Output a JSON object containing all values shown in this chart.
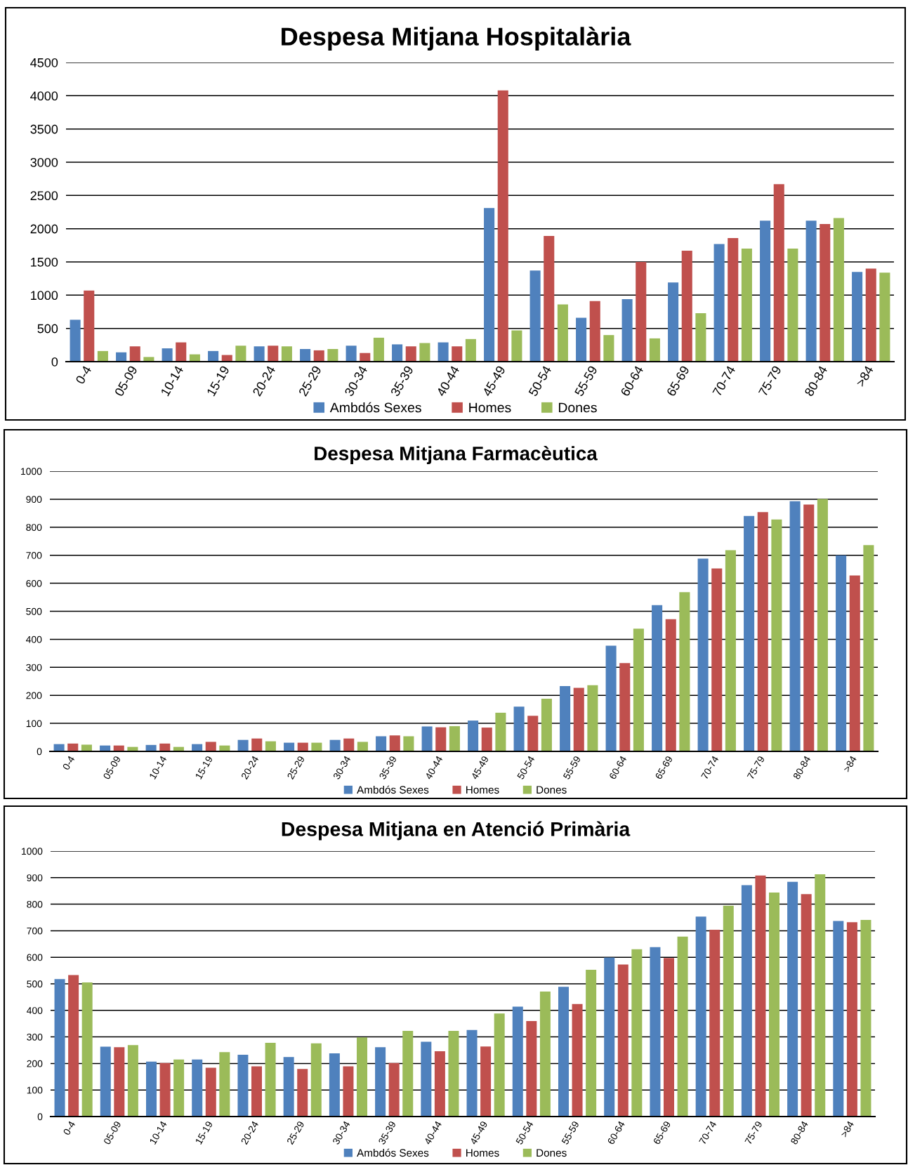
{
  "chart_data": [
    {
      "type": "bar",
      "title": "Despesa Mitjana Hospitalària",
      "categories": [
        "0-4",
        "05-09",
        "10-14",
        "15-19",
        "20-24",
        "25-29",
        "30-34",
        "35-39",
        "40-44",
        "45-49",
        "50-54",
        "55-59",
        "60-64",
        "65-69",
        "70-74",
        "75-79",
        "80-84",
        ">84"
      ],
      "series": [
        {
          "name": "Ambdós Sexes",
          "color": "#4f81bd",
          "values": [
            630,
            140,
            200,
            160,
            230,
            190,
            240,
            260,
            290,
            2310,
            1370,
            660,
            940,
            1190,
            1770,
            2120,
            2120,
            1350
          ]
        },
        {
          "name": "Homes",
          "color": "#c0504d",
          "values": [
            1070,
            230,
            290,
            100,
            240,
            170,
            130,
            230,
            230,
            4080,
            1890,
            910,
            1500,
            1670,
            1860,
            2670,
            2070,
            1400
          ]
        },
        {
          "name": "Dones",
          "color": "#9bbb59",
          "values": [
            160,
            70,
            110,
            240,
            230,
            190,
            360,
            280,
            340,
            470,
            860,
            400,
            350,
            730,
            1700,
            1700,
            2160,
            1340
          ]
        }
      ],
      "ylim": [
        0,
        4500
      ],
      "yticks": [
        0,
        500,
        1000,
        1500,
        2000,
        2500,
        3000,
        3500,
        4000,
        4500
      ],
      "grid": "y",
      "legend": "bottom"
    },
    {
      "type": "bar",
      "title": "Despesa Mitjana Farmacèutica",
      "categories": [
        "0-4",
        "05-09",
        "10-14",
        "15-19",
        "20-24",
        "25-29",
        "30-34",
        "35-39",
        "40-44",
        "45-49",
        "50-54",
        "55-59",
        "60-64",
        "65-69",
        "70-74",
        "75-79",
        "80-84",
        ">84"
      ],
      "series": [
        {
          "name": "Ambdós Sexes",
          "color": "#4f81bd",
          "values": [
            26,
            21,
            23,
            26,
            41,
            31,
            41,
            54,
            89,
            110,
            160,
            233,
            377,
            522,
            688,
            840,
            893,
            700
          ]
        },
        {
          "name": "Homes",
          "color": "#c0504d",
          "values": [
            28,
            21,
            28,
            34,
            46,
            31,
            46,
            57,
            86,
            85,
            127,
            227,
            315,
            472,
            653,
            854,
            881,
            628
          ]
        },
        {
          "name": "Dones",
          "color": "#9bbb59",
          "values": [
            24,
            16,
            16,
            21,
            36,
            31,
            34,
            54,
            90,
            138,
            188,
            236,
            438,
            568,
            718,
            828,
            901,
            736
          ]
        }
      ],
      "ylim": [
        0,
        1000
      ],
      "yticks": [
        0,
        100,
        200,
        300,
        400,
        500,
        600,
        700,
        800,
        900,
        1000
      ],
      "grid": "y",
      "legend": "bottom"
    },
    {
      "type": "bar",
      "title": "Despesa Mitjana en Atenció Primària",
      "categories": [
        "0-4",
        "05-09",
        "10-14",
        "15-19",
        "20-24",
        "25-29",
        "30-34",
        "35-39",
        "40-44",
        "45-49",
        "50-54",
        "55-59",
        "60-64",
        "65-69",
        "70-74",
        "75-79",
        "80-84",
        ">84"
      ],
      "series": [
        {
          "name": "Ambdós Sexes",
          "color": "#4f81bd",
          "values": [
            518,
            263,
            207,
            215,
            233,
            224,
            238,
            261,
            282,
            326,
            414,
            489,
            599,
            638,
            753,
            872,
            884,
            737
          ]
        },
        {
          "name": "Homes",
          "color": "#c0504d",
          "values": [
            533,
            261,
            202,
            184,
            189,
            179,
            189,
            202,
            246,
            264,
            360,
            424,
            573,
            597,
            704,
            908,
            838,
            732
          ]
        },
        {
          "name": "Dones",
          "color": "#9bbb59",
          "values": [
            505,
            269,
            215,
            243,
            278,
            276,
            298,
            323,
            323,
            388,
            471,
            553,
            630,
            678,
            794,
            844,
            913,
            741
          ]
        }
      ],
      "ylim": [
        0,
        1000
      ],
      "yticks": [
        0,
        100,
        200,
        300,
        400,
        500,
        600,
        700,
        800,
        900,
        1000
      ],
      "grid": "y",
      "legend": "bottom"
    }
  ]
}
